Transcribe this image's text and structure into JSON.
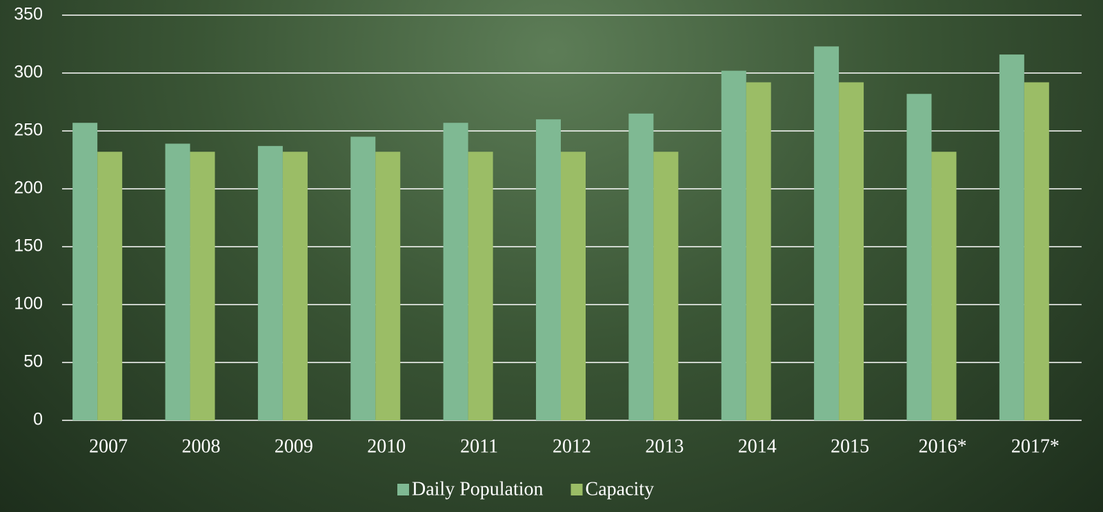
{
  "chart_data": {
    "type": "bar",
    "categories": [
      "2007",
      "2008",
      "2009",
      "2010",
      "2011",
      "2012",
      "2013",
      "2014",
      "2015",
      "2016*",
      "2017*"
    ],
    "series": [
      {
        "name": "Daily Population",
        "color": "#7fb993",
        "values": [
          257,
          239,
          237,
          245,
          257,
          260,
          265,
          302,
          323,
          282,
          316
        ]
      },
      {
        "name": "Capacity",
        "color": "#9bbd66",
        "values": [
          232,
          232,
          232,
          232,
          232,
          232,
          232,
          292,
          292,
          232,
          292
        ]
      }
    ],
    "ylim": [
      0,
      350
    ],
    "yticks": [
      0,
      50,
      100,
      150,
      200,
      250,
      300,
      350
    ],
    "grid": true,
    "legend": "bottom"
  }
}
